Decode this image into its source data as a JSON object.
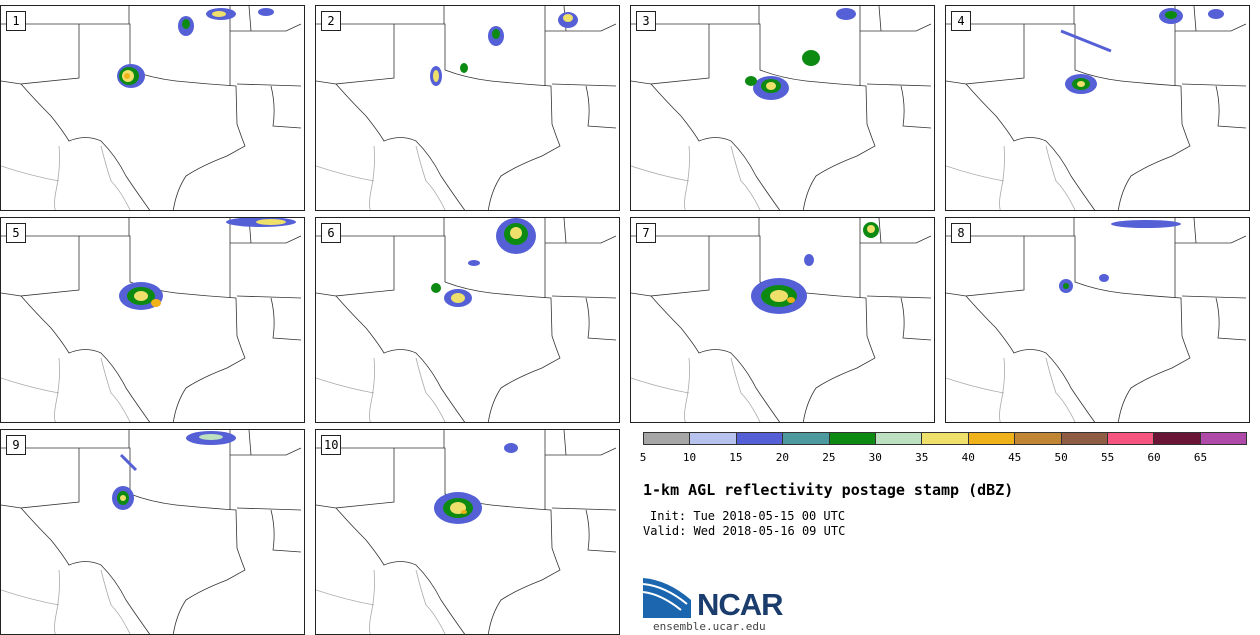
{
  "panels": [
    {
      "label": "1"
    },
    {
      "label": "2"
    },
    {
      "label": "3"
    },
    {
      "label": "4"
    },
    {
      "label": "5"
    },
    {
      "label": "6"
    },
    {
      "label": "7"
    },
    {
      "label": "8"
    },
    {
      "label": "9"
    },
    {
      "label": "10"
    }
  ],
  "colorbar": {
    "colors": [
      "#a6a6a6",
      "#b7c3ee",
      "#5560d6",
      "#4d9a9e",
      "#0d8a12",
      "#bde0c0",
      "#eee06a",
      "#f0b21a",
      "#c08634",
      "#8e5d44",
      "#f5557f",
      "#6a1536",
      "#b04aa8"
    ],
    "ticks": [
      "5",
      "10",
      "15",
      "20",
      "25",
      "30",
      "35",
      "40",
      "45",
      "50",
      "55",
      "60",
      "65"
    ]
  },
  "title": "1-km AGL reflectivity postage stamp (dBZ)",
  "init": "Init: Tue 2018-05-15 00 UTC",
  "valid": "Valid: Wed 2018-05-16 09 UTC",
  "logo": {
    "text": "NCAR",
    "site": "ensemble.ucar.edu"
  }
}
